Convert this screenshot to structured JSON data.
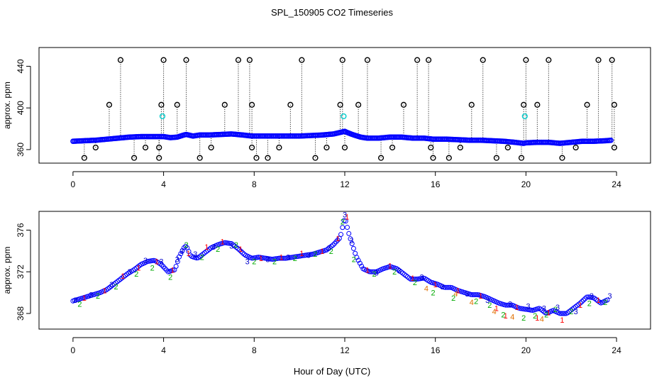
{
  "figure_title": "SPL_150905  CO2 Timeseries",
  "shared_xlabel": "Hour of Day (UTC)",
  "colors": {
    "axis": "#000000",
    "blue_marker": "#0000ff",
    "cyan_marker": "#00cccc",
    "red": "#ff0000",
    "green": "#00aa00",
    "navy": "#0000cc"
  },
  "chart_data": [
    {
      "type": "scatter",
      "name": "raw-co2-panel",
      "title": "",
      "xlabel": "",
      "ylabel": "approx. ppm",
      "xlim": [
        -1.5,
        25.5
      ],
      "ylim": [
        347,
        458
      ],
      "xticks": [
        0,
        4,
        8,
        12,
        16,
        20,
        24
      ],
      "yticks": [
        360,
        400,
        440
      ],
      "baseline_series": {
        "name": "CO2 (blue circles)",
        "x": [
          0.0,
          0.5,
          1.0,
          1.5,
          2.0,
          2.5,
          3.0,
          3.5,
          4.0,
          4.3,
          4.6,
          4.9,
          5.0,
          5.3,
          5.6,
          6.0,
          6.5,
          7.0,
          7.5,
          7.9,
          8.2,
          8.5,
          9.0,
          9.5,
          10.0,
          10.5,
          11.0,
          11.5,
          11.9,
          12.0,
          12.1,
          12.4,
          12.7,
          13.0,
          13.5,
          14.0,
          14.5,
          15.0,
          15.5,
          15.9,
          16.0,
          16.5,
          17.0,
          17.5,
          18.0,
          18.5,
          19.0,
          19.5,
          19.9,
          20.0,
          20.5,
          21.0,
          21.5,
          22.0,
          22.5,
          23.0,
          23.5,
          23.8
        ],
        "y": [
          368,
          368.5,
          369,
          370,
          371,
          372,
          372.5,
          372.5,
          372.5,
          371.5,
          372,
          374,
          374.5,
          373,
          374,
          374,
          374.5,
          375,
          374,
          373,
          373,
          373,
          373,
          373,
          373,
          373.5,
          374,
          375,
          377,
          377.5,
          376.5,
          374,
          372,
          371,
          371,
          372,
          372,
          371,
          371,
          370,
          370,
          370,
          369.5,
          369,
          369,
          368.5,
          368,
          367,
          366,
          366.5,
          367,
          367,
          366,
          367,
          368,
          368,
          368.5,
          369
        ]
      },
      "spike_series": {
        "name": "outliers (black circles with dotted drop lines)",
        "x": [
          0.5,
          1.0,
          1.6,
          2.1,
          2.7,
          3.2,
          3.8,
          3.8,
          3.9,
          4.0,
          4.6,
          5.0,
          5.6,
          6.1,
          6.7,
          7.3,
          7.8,
          7.9,
          7.9,
          8.1,
          8.6,
          9.1,
          9.6,
          10.1,
          10.7,
          11.2,
          11.8,
          11.9,
          12.0,
          12.6,
          13.0,
          13.6,
          14.1,
          14.6,
          15.2,
          15.7,
          15.8,
          15.9,
          16.6,
          17.1,
          17.6,
          18.1,
          18.7,
          19.2,
          19.8,
          19.9,
          20.0,
          20.5,
          21.0,
          21.6,
          22.2,
          22.7,
          23.2,
          23.8,
          23.9,
          23.9
        ],
        "y": [
          352,
          362,
          403,
          446,
          352,
          362,
          352,
          362,
          403,
          446,
          403,
          446,
          352,
          362,
          403,
          446,
          446,
          403,
          362,
          352,
          352,
          362,
          403,
          446,
          352,
          362,
          403,
          446,
          362,
          403,
          446,
          352,
          362,
          403,
          446,
          446,
          362,
          352,
          352,
          362,
          403,
          446,
          352,
          362,
          352,
          403,
          446,
          403,
          446,
          352,
          362,
          403,
          446,
          446,
          403,
          362
        ]
      },
      "cyan_series": {
        "name": "flagged (cyan circles)",
        "x": [
          3.95,
          11.95,
          19.95
        ],
        "y": [
          392,
          392,
          392
        ]
      }
    },
    {
      "type": "scatter",
      "name": "detail-panel",
      "title": "",
      "xlabel": "Hour of Day (UTC)",
      "ylabel": "approx. ppm",
      "xlim": [
        -1.5,
        25.5
      ],
      "ylim": [
        366.5,
        377.8
      ],
      "xticks": [
        0,
        4,
        8,
        12,
        16,
        20,
        24
      ],
      "yticks": [
        368,
        372,
        376
      ],
      "series": [
        {
          "name": "blue circles",
          "x": [
            0.0,
            0.3,
            0.6,
            0.9,
            1.2,
            1.5,
            1.8,
            2.1,
            2.4,
            2.7,
            3.0,
            3.3,
            3.6,
            3.9,
            4.2,
            4.5,
            4.7,
            4.9,
            5.0,
            5.2,
            5.5,
            5.8,
            6.1,
            6.4,
            6.7,
            7.0,
            7.3,
            7.6,
            7.9,
            8.2,
            8.5,
            8.8,
            9.1,
            9.4,
            9.7,
            10.0,
            10.3,
            10.6,
            10.9,
            11.2,
            11.5,
            11.8,
            12.0,
            12.2,
            12.5,
            12.8,
            13.1,
            13.4,
            13.7,
            14.0,
            14.3,
            14.6,
            14.9,
            15.2,
            15.5,
            15.8,
            16.1,
            16.4,
            16.7,
            17.0,
            17.3,
            17.6,
            17.9,
            18.2,
            18.5,
            18.8,
            19.1,
            19.4,
            19.7,
            20.0,
            20.3,
            20.6,
            20.9,
            21.2,
            21.5,
            21.8,
            22.1,
            22.4,
            22.7,
            23.0,
            23.3,
            23.6
          ],
          "y": [
            369.2,
            369.4,
            369.6,
            369.8,
            370.0,
            370.3,
            370.8,
            371.3,
            371.8,
            372.2,
            372.7,
            373.0,
            373.1,
            372.7,
            372.0,
            372.2,
            373.5,
            374.3,
            374.5,
            373.5,
            373.3,
            373.8,
            374.3,
            374.6,
            374.8,
            374.7,
            374.2,
            373.6,
            373.3,
            373.4,
            373.3,
            373.2,
            373.3,
            373.3,
            373.4,
            373.5,
            373.6,
            373.7,
            373.9,
            374.1,
            374.6,
            375.3,
            377.2,
            375.5,
            373.5,
            372.3,
            372.0,
            372.0,
            372.3,
            372.5,
            372.3,
            371.8,
            371.3,
            371.3,
            371.4,
            371.0,
            370.8,
            370.5,
            370.5,
            370.2,
            370.0,
            369.8,
            369.8,
            369.6,
            369.3,
            369.0,
            368.8,
            368.8,
            368.5,
            368.4,
            368.3,
            368.5,
            368.0,
            368.3,
            368.0,
            368.0,
            368.5,
            369.0,
            369.6,
            369.5,
            369.0,
            369.3
          ]
        },
        {
          "name": "red markers (1)",
          "x": [
            0.5,
            1.4,
            2.2,
            2.9,
            3.7,
            4.4,
            5.1,
            5.9,
            6.6,
            7.4,
            8.3,
            9.2,
            10.1,
            11.0,
            11.7,
            12.1,
            13.0,
            14.0,
            15.0,
            16.0,
            17.0,
            18.0,
            18.7,
            19.1,
            19.6,
            20.5,
            21.0,
            21.6,
            22.4,
            23.2
          ],
          "y": [
            369.5,
            370.2,
            371.6,
            372.4,
            373.0,
            372.2,
            373.8,
            374.4,
            374.9,
            374.2,
            373.3,
            373.4,
            373.8,
            374.0,
            375.2,
            377.3,
            372.2,
            372.6,
            371.4,
            370.8,
            370.2,
            369.7,
            368.5,
            367.8,
            368.6,
            367.6,
            368.1,
            367.4,
            368.8,
            369.3
          ]
        },
        {
          "name": "green markers (2)",
          "x": [
            0.3,
            1.1,
            1.9,
            2.8,
            3.5,
            4.3,
            5.0,
            5.7,
            6.4,
            7.2,
            8.0,
            8.9,
            9.8,
            10.7,
            11.4,
            11.9,
            12.4,
            13.3,
            14.2,
            15.1,
            15.9,
            16.8,
            17.8,
            18.4,
            19.0,
            19.9,
            20.4,
            20.9,
            21.3,
            22.0,
            22.8,
            23.5
          ],
          "y": [
            368.9,
            369.7,
            370.6,
            371.8,
            372.4,
            371.5,
            374.6,
            373.4,
            374.2,
            374.6,
            373.0,
            373.0,
            373.3,
            373.7,
            374.0,
            376.8,
            373.2,
            371.8,
            372.0,
            371.0,
            370.0,
            369.5,
            369.2,
            368.8,
            367.9,
            367.6,
            367.8,
            367.9,
            368.4,
            368.2,
            369.0,
            369.1
          ]
        },
        {
          "name": "navy markers (3)",
          "x": [
            0.1,
            0.8,
            1.7,
            2.5,
            3.2,
            3.9,
            4.6,
            4.8,
            5.4,
            6.2,
            7.0,
            7.7,
            8.6,
            9.5,
            10.4,
            11.3,
            12.0,
            12.3,
            13.4,
            14.4,
            15.4,
            16.3,
            17.4,
            18.3,
            19.3,
            20.1,
            20.8,
            21.4,
            22.2,
            22.9,
            23.7
          ],
          "y": [
            369.3,
            369.8,
            370.8,
            372.0,
            373.1,
            373.0,
            373.2,
            374.0,
            373.7,
            374.4,
            374.5,
            373.0,
            373.2,
            373.4,
            373.6,
            374.3,
            377.5,
            375.0,
            371.9,
            372.1,
            371.5,
            370.6,
            369.9,
            369.3,
            368.9,
            368.7,
            368.5,
            368.6,
            368.2,
            369.7,
            369.7
          ]
        },
        {
          "name": "orange markers (4)",
          "x": [
            15.6,
            16.9,
            17.6,
            18.6,
            19.4,
            20.7
          ],
          "y": [
            370.4,
            369.9,
            369.1,
            368.2,
            367.7,
            367.5
          ]
        }
      ]
    }
  ]
}
